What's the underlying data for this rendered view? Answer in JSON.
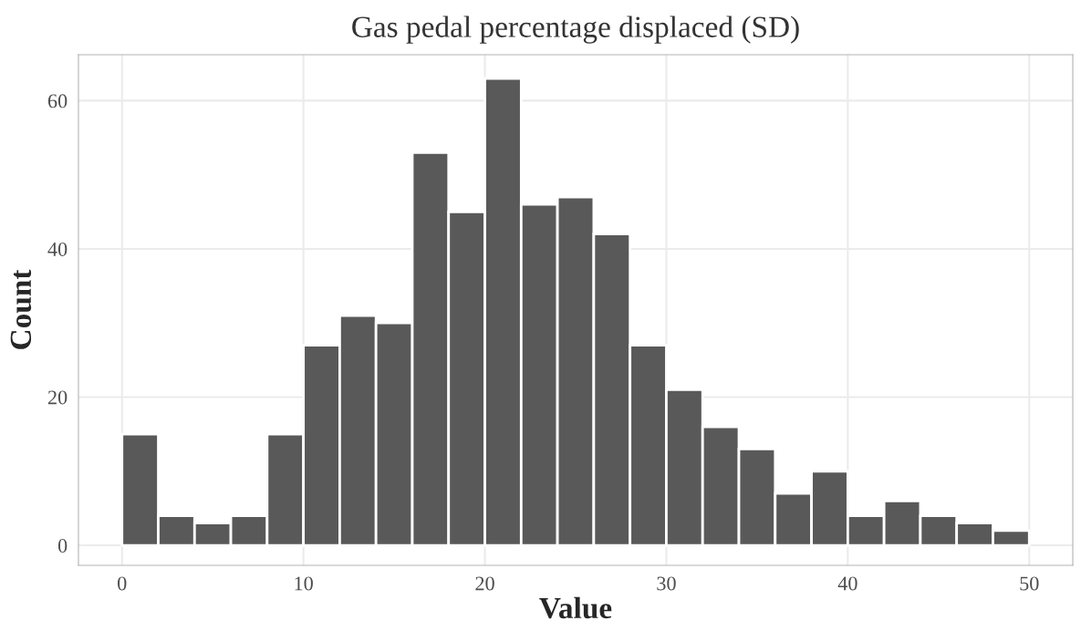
{
  "chart_data": {
    "type": "histogram",
    "title": "Gas pedal percentage displaced (SD)",
    "xlabel": "Value",
    "ylabel": "Count",
    "bins": [
      0,
      2,
      4,
      6,
      8,
      10,
      12,
      14,
      16,
      18,
      20,
      22,
      24,
      26,
      28,
      30,
      32,
      34,
      36,
      38,
      40,
      42,
      44,
      46,
      48,
      50
    ],
    "values": [
      15,
      4,
      3,
      4,
      15,
      27,
      31,
      30,
      53,
      45,
      63,
      46,
      47,
      42,
      27,
      21,
      16,
      13,
      7,
      10,
      4,
      6,
      4,
      3,
      2
    ],
    "color": "#595959",
    "xlim": [
      -2.4,
      52.4
    ],
    "ylim": [
      -2.7,
      66.2
    ],
    "xticks": [
      0,
      10,
      20,
      30,
      40,
      50
    ],
    "yticks": [
      0,
      20,
      40,
      60
    ],
    "grid": true
  }
}
